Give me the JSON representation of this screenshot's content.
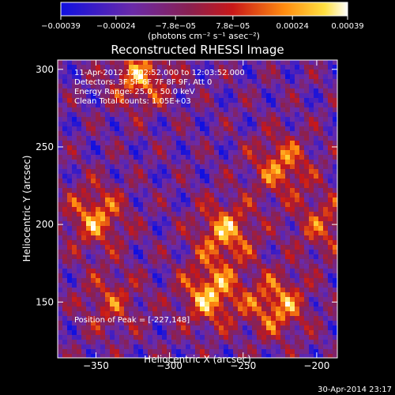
{
  "chart_data": {
    "type": "heatmap",
    "title": "Reconstructed RHESSI Image",
    "xlabel": "Heliocentric X (arcsec)",
    "ylabel": "Heliocentric Y (arcsec)",
    "xlim": [
      -376,
      -186
    ],
    "ylim": [
      114,
      306
    ],
    "x_ticks": [
      {
        "value": -350,
        "label": "−350"
      },
      {
        "value": -300,
        "label": "−300"
      },
      {
        "value": -250,
        "label": "−250"
      },
      {
        "value": -200,
        "label": "−200"
      }
    ],
    "y_ticks": [
      {
        "value": 150,
        "label": "150"
      },
      {
        "value": 200,
        "label": "200"
      },
      {
        "value": 250,
        "label": "250"
      },
      {
        "value": 300,
        "label": "300"
      }
    ],
    "colorbar": {
      "range": [
        -0.00039,
        0.00039
      ],
      "ticks": [
        {
          "value": -0.00039,
          "label": "−0.00039"
        },
        {
          "value": -0.00024,
          "label": "−0.00024"
        },
        {
          "value": -7.8e-05,
          "label": "−7.8e−05"
        },
        {
          "value": 7.8e-05,
          "label": "7.8e−05"
        },
        {
          "value": 0.00024,
          "label": "0.00024"
        },
        {
          "value": 0.00039,
          "label": "0.00039"
        }
      ],
      "units": "(photons cm⁻² s⁻¹ asec⁻²)"
    },
    "annotations": [
      "11-Apr-2012 12:02:52.000 to 12:03:52.000",
      "Detectors: 3F 5F 6F 7F 8F 9F, Att 0",
      "Energy Range: 25.0 - 50.0 keV",
      "Clean     Total counts: 1.05E+03"
    ],
    "peak_label": "Position of Peak = [-227,148]",
    "peak": [
      -227,
      148
    ],
    "sources": [
      {
        "x": -272,
        "y": 155,
        "amp": 1.0
      },
      {
        "x": -262,
        "y": 195,
        "amp": 0.9
      },
      {
        "x": -320,
        "y": 295,
        "amp": 0.85
      },
      {
        "x": -224,
        "y": 238,
        "amp": 0.8
      },
      {
        "x": -350,
        "y": 205,
        "amp": 0.85
      },
      {
        "x": -227,
        "y": 148,
        "amp": 0.9
      },
      {
        "x": -195,
        "y": 200,
        "amp": 0.6
      },
      {
        "x": -340,
        "y": 150,
        "amp": 0.55
      }
    ]
  },
  "footer": {
    "timestamp": "30-Apr-2014 23:17"
  }
}
